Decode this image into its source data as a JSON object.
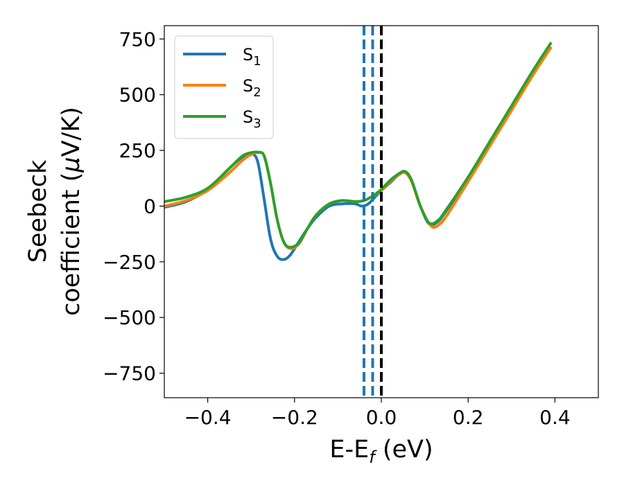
{
  "chart_data": {
    "type": "line",
    "xlabel": {
      "main": "E-E",
      "sub": "f",
      "tail": " (eV)"
    },
    "ylabel": {
      "line1": "Seebeck",
      "line2": "coefficient  (",
      "mu": "μ",
      "line2_tail": "V/K)"
    },
    "xlim": [
      -0.5,
      0.5
    ],
    "ylim": [
      -860,
      810
    ],
    "xticks": [
      -0.4,
      -0.2,
      0.0,
      0.2,
      0.4
    ],
    "xtick_labels": [
      "−0.4",
      "−0.2",
      "0.0",
      "0.2",
      "0.4"
    ],
    "yticks": [
      750,
      500,
      250,
      0,
      -250,
      -500,
      -750
    ],
    "ytick_labels": [
      "750",
      "500",
      "250",
      "0",
      "−250",
      "−500",
      "−750"
    ],
    "grid": false,
    "legend_position": "top-left",
    "series": [
      {
        "name": "S",
        "sub": "1",
        "color": "#1f77b4",
        "x": [
          -0.5,
          -0.45,
          -0.4,
          -0.35,
          -0.32,
          -0.3,
          -0.285,
          -0.27,
          -0.255,
          -0.24,
          -0.225,
          -0.21,
          -0.19,
          -0.17,
          -0.15,
          -0.12,
          -0.09,
          -0.06,
          -0.045,
          -0.03,
          -0.015,
          0.0,
          0.02,
          0.04,
          0.055,
          0.07,
          0.09,
          0.11,
          0.13,
          0.15,
          0.2,
          0.25,
          0.3,
          0.35,
          0.39
        ],
        "y": [
          -5,
          20,
          75,
          170,
          220,
          235,
          200,
          30,
          -150,
          -225,
          -240,
          -220,
          -160,
          -100,
          -50,
          0,
          10,
          10,
          0,
          10,
          40,
          70,
          105,
          140,
          150,
          110,
          0,
          -80,
          -70,
          -20,
          120,
          280,
          440,
          600,
          710
        ]
      },
      {
        "name": "S",
        "sub": "2",
        "color": "#ff7f0e",
        "x": [
          -0.5,
          -0.45,
          -0.4,
          -0.35,
          -0.32,
          -0.3,
          -0.285,
          -0.27,
          -0.255,
          -0.24,
          -0.225,
          -0.21,
          -0.19,
          -0.17,
          -0.15,
          -0.12,
          -0.09,
          -0.06,
          -0.04,
          -0.02,
          0.0,
          0.02,
          0.04,
          0.055,
          0.07,
          0.09,
          0.115,
          0.135,
          0.155,
          0.2,
          0.25,
          0.3,
          0.35,
          0.39
        ],
        "y": [
          0,
          25,
          70,
          150,
          205,
          232,
          240,
          225,
          100,
          -60,
          -160,
          -190,
          -170,
          -100,
          -40,
          10,
          25,
          20,
          25,
          45,
          70,
          110,
          140,
          150,
          110,
          0,
          -90,
          -80,
          -30,
          110,
          270,
          430,
          590,
          710
        ]
      },
      {
        "name": "S",
        "sub": "3",
        "color": "#2ca02c",
        "x": [
          -0.5,
          -0.45,
          -0.4,
          -0.35,
          -0.32,
          -0.3,
          -0.285,
          -0.27,
          -0.255,
          -0.24,
          -0.225,
          -0.21,
          -0.19,
          -0.17,
          -0.15,
          -0.12,
          -0.09,
          -0.06,
          -0.04,
          -0.02,
          0.0,
          0.02,
          0.04,
          0.055,
          0.07,
          0.09,
          0.11,
          0.13,
          0.15,
          0.2,
          0.25,
          0.3,
          0.35,
          0.39
        ],
        "y": [
          20,
          40,
          80,
          170,
          225,
          240,
          242,
          225,
          100,
          -60,
          -160,
          -185,
          -165,
          -100,
          -40,
          10,
          25,
          20,
          25,
          45,
          75,
          115,
          145,
          155,
          115,
          0,
          -75,
          -65,
          -15,
          130,
          290,
          450,
          610,
          730
        ]
      }
    ],
    "vertical_lines": [
      {
        "x": -0.04,
        "color": "#1f77b4",
        "style": "dashed"
      },
      {
        "x": -0.02,
        "color": "#1f77b4",
        "style": "dashed"
      },
      {
        "x": 0.0,
        "color": "#1f77b4",
        "style": "dashed"
      },
      {
        "x": 0.0,
        "color": "#000000",
        "style": "dashed"
      }
    ]
  }
}
